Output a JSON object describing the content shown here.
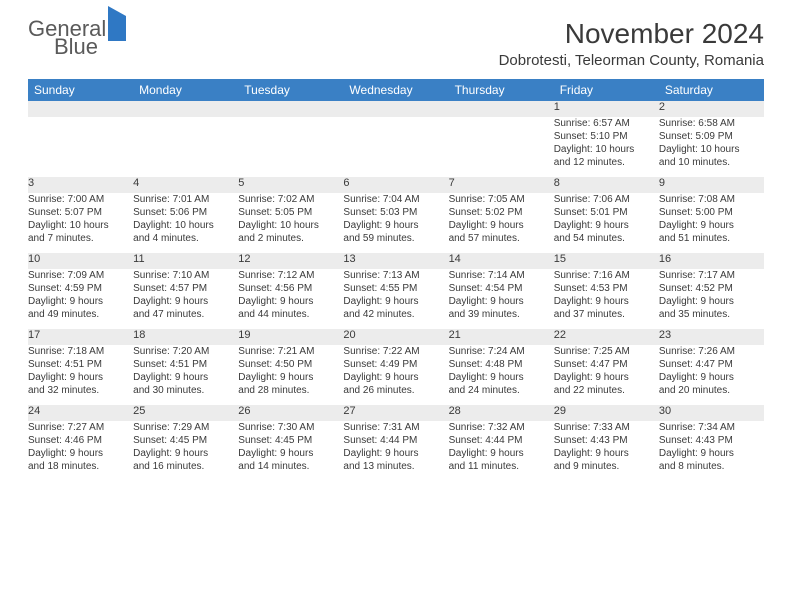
{
  "logo": {
    "line1": "General",
    "line2": "Blue"
  },
  "title": "November 2024",
  "location": "Dobrotesti, Teleorman County, Romania",
  "colors": {
    "header_bg": "#3a80c5",
    "header_text": "#ffffff",
    "daynum_bg": "#ececec",
    "text": "#3a3a3a",
    "rule": "#3a80c5",
    "logo_gray": "#5a5a5a",
    "logo_blue": "#2f78c4",
    "page_bg": "#ffffff"
  },
  "day_headers": [
    "Sunday",
    "Monday",
    "Tuesday",
    "Wednesday",
    "Thursday",
    "Friday",
    "Saturday"
  ],
  "weeks": [
    [
      null,
      null,
      null,
      null,
      null,
      {
        "n": "1",
        "sr": "Sunrise: 6:57 AM",
        "ss": "Sunset: 5:10 PM",
        "d1": "Daylight: 10 hours",
        "d2": "and 12 minutes."
      },
      {
        "n": "2",
        "sr": "Sunrise: 6:58 AM",
        "ss": "Sunset: 5:09 PM",
        "d1": "Daylight: 10 hours",
        "d2": "and 10 minutes."
      }
    ],
    [
      {
        "n": "3",
        "sr": "Sunrise: 7:00 AM",
        "ss": "Sunset: 5:07 PM",
        "d1": "Daylight: 10 hours",
        "d2": "and 7 minutes."
      },
      {
        "n": "4",
        "sr": "Sunrise: 7:01 AM",
        "ss": "Sunset: 5:06 PM",
        "d1": "Daylight: 10 hours",
        "d2": "and 4 minutes."
      },
      {
        "n": "5",
        "sr": "Sunrise: 7:02 AM",
        "ss": "Sunset: 5:05 PM",
        "d1": "Daylight: 10 hours",
        "d2": "and 2 minutes."
      },
      {
        "n": "6",
        "sr": "Sunrise: 7:04 AM",
        "ss": "Sunset: 5:03 PM",
        "d1": "Daylight: 9 hours",
        "d2": "and 59 minutes."
      },
      {
        "n": "7",
        "sr": "Sunrise: 7:05 AM",
        "ss": "Sunset: 5:02 PM",
        "d1": "Daylight: 9 hours",
        "d2": "and 57 minutes."
      },
      {
        "n": "8",
        "sr": "Sunrise: 7:06 AM",
        "ss": "Sunset: 5:01 PM",
        "d1": "Daylight: 9 hours",
        "d2": "and 54 minutes."
      },
      {
        "n": "9",
        "sr": "Sunrise: 7:08 AM",
        "ss": "Sunset: 5:00 PM",
        "d1": "Daylight: 9 hours",
        "d2": "and 51 minutes."
      }
    ],
    [
      {
        "n": "10",
        "sr": "Sunrise: 7:09 AM",
        "ss": "Sunset: 4:59 PM",
        "d1": "Daylight: 9 hours",
        "d2": "and 49 minutes."
      },
      {
        "n": "11",
        "sr": "Sunrise: 7:10 AM",
        "ss": "Sunset: 4:57 PM",
        "d1": "Daylight: 9 hours",
        "d2": "and 47 minutes."
      },
      {
        "n": "12",
        "sr": "Sunrise: 7:12 AM",
        "ss": "Sunset: 4:56 PM",
        "d1": "Daylight: 9 hours",
        "d2": "and 44 minutes."
      },
      {
        "n": "13",
        "sr": "Sunrise: 7:13 AM",
        "ss": "Sunset: 4:55 PM",
        "d1": "Daylight: 9 hours",
        "d2": "and 42 minutes."
      },
      {
        "n": "14",
        "sr": "Sunrise: 7:14 AM",
        "ss": "Sunset: 4:54 PM",
        "d1": "Daylight: 9 hours",
        "d2": "and 39 minutes."
      },
      {
        "n": "15",
        "sr": "Sunrise: 7:16 AM",
        "ss": "Sunset: 4:53 PM",
        "d1": "Daylight: 9 hours",
        "d2": "and 37 minutes."
      },
      {
        "n": "16",
        "sr": "Sunrise: 7:17 AM",
        "ss": "Sunset: 4:52 PM",
        "d1": "Daylight: 9 hours",
        "d2": "and 35 minutes."
      }
    ],
    [
      {
        "n": "17",
        "sr": "Sunrise: 7:18 AM",
        "ss": "Sunset: 4:51 PM",
        "d1": "Daylight: 9 hours",
        "d2": "and 32 minutes."
      },
      {
        "n": "18",
        "sr": "Sunrise: 7:20 AM",
        "ss": "Sunset: 4:51 PM",
        "d1": "Daylight: 9 hours",
        "d2": "and 30 minutes."
      },
      {
        "n": "19",
        "sr": "Sunrise: 7:21 AM",
        "ss": "Sunset: 4:50 PM",
        "d1": "Daylight: 9 hours",
        "d2": "and 28 minutes."
      },
      {
        "n": "20",
        "sr": "Sunrise: 7:22 AM",
        "ss": "Sunset: 4:49 PM",
        "d1": "Daylight: 9 hours",
        "d2": "and 26 minutes."
      },
      {
        "n": "21",
        "sr": "Sunrise: 7:24 AM",
        "ss": "Sunset: 4:48 PM",
        "d1": "Daylight: 9 hours",
        "d2": "and 24 minutes."
      },
      {
        "n": "22",
        "sr": "Sunrise: 7:25 AM",
        "ss": "Sunset: 4:47 PM",
        "d1": "Daylight: 9 hours",
        "d2": "and 22 minutes."
      },
      {
        "n": "23",
        "sr": "Sunrise: 7:26 AM",
        "ss": "Sunset: 4:47 PM",
        "d1": "Daylight: 9 hours",
        "d2": "and 20 minutes."
      }
    ],
    [
      {
        "n": "24",
        "sr": "Sunrise: 7:27 AM",
        "ss": "Sunset: 4:46 PM",
        "d1": "Daylight: 9 hours",
        "d2": "and 18 minutes."
      },
      {
        "n": "25",
        "sr": "Sunrise: 7:29 AM",
        "ss": "Sunset: 4:45 PM",
        "d1": "Daylight: 9 hours",
        "d2": "and 16 minutes."
      },
      {
        "n": "26",
        "sr": "Sunrise: 7:30 AM",
        "ss": "Sunset: 4:45 PM",
        "d1": "Daylight: 9 hours",
        "d2": "and 14 minutes."
      },
      {
        "n": "27",
        "sr": "Sunrise: 7:31 AM",
        "ss": "Sunset: 4:44 PM",
        "d1": "Daylight: 9 hours",
        "d2": "and 13 minutes."
      },
      {
        "n": "28",
        "sr": "Sunrise: 7:32 AM",
        "ss": "Sunset: 4:44 PM",
        "d1": "Daylight: 9 hours",
        "d2": "and 11 minutes."
      },
      {
        "n": "29",
        "sr": "Sunrise: 7:33 AM",
        "ss": "Sunset: 4:43 PM",
        "d1": "Daylight: 9 hours",
        "d2": "and 9 minutes."
      },
      {
        "n": "30",
        "sr": "Sunrise: 7:34 AM",
        "ss": "Sunset: 4:43 PM",
        "d1": "Daylight: 9 hours",
        "d2": "and 8 minutes."
      }
    ]
  ]
}
